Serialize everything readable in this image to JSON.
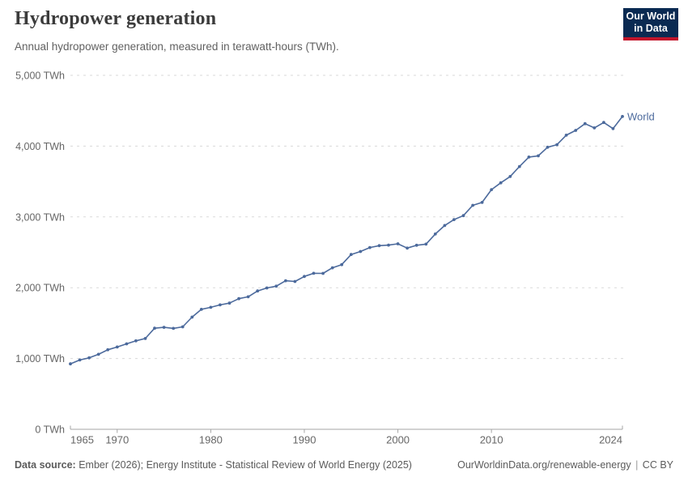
{
  "header": {
    "title": "Hydropower generation",
    "subtitle": "Annual hydropower generation, measured in terawatt-hours (TWh).",
    "logo": {
      "line1": "Our World",
      "line2": "in Data"
    }
  },
  "chart_data": {
    "type": "line",
    "title": "Hydropower generation",
    "xlabel": "",
    "ylabel": "TWh",
    "xlim": [
      1965,
      2024
    ],
    "ylim": [
      0,
      5000
    ],
    "grid": "horizontal-dashed",
    "legend_position": "end-of-line",
    "x_ticks": [
      {
        "value": 1965,
        "label": "1965"
      },
      {
        "value": 1970,
        "label": "1970"
      },
      {
        "value": 1980,
        "label": "1980"
      },
      {
        "value": 1990,
        "label": "1990"
      },
      {
        "value": 2000,
        "label": "2000"
      },
      {
        "value": 2010,
        "label": "2010"
      },
      {
        "value": 2024,
        "label": "2024"
      }
    ],
    "y_ticks": [
      {
        "value": 0,
        "label": "0 TWh"
      },
      {
        "value": 1000,
        "label": "1,000 TWh"
      },
      {
        "value": 2000,
        "label": "2,000 TWh"
      },
      {
        "value": 3000,
        "label": "3,000 TWh"
      },
      {
        "value": 4000,
        "label": "4,000 TWh"
      },
      {
        "value": 5000,
        "label": "5,000 TWh"
      }
    ],
    "series": [
      {
        "name": "World",
        "color": "#4C6A9C",
        "x": [
          1965,
          1966,
          1967,
          1968,
          1969,
          1970,
          1971,
          1972,
          1973,
          1974,
          1975,
          1976,
          1977,
          1978,
          1979,
          1980,
          1981,
          1982,
          1983,
          1984,
          1985,
          1986,
          1987,
          1988,
          1989,
          1990,
          1991,
          1992,
          1993,
          1994,
          1995,
          1996,
          1997,
          1998,
          1999,
          2000,
          2001,
          2002,
          2003,
          2004,
          2005,
          2006,
          2007,
          2008,
          2009,
          2010,
          2011,
          2012,
          2013,
          2014,
          2015,
          2016,
          2017,
          2018,
          2019,
          2020,
          2021,
          2022,
          2023,
          2024
        ],
        "values": [
          924,
          979,
          1009,
          1060,
          1124,
          1163,
          1207,
          1249,
          1283,
          1428,
          1441,
          1426,
          1447,
          1585,
          1695,
          1723,
          1758,
          1783,
          1845,
          1872,
          1954,
          1997,
          2022,
          2098,
          2088,
          2159,
          2204,
          2202,
          2281,
          2326,
          2469,
          2511,
          2568,
          2594,
          2602,
          2620,
          2560,
          2600,
          2616,
          2759,
          2879,
          2962,
          3018,
          3164,
          3205,
          3386,
          3482,
          3571,
          3712,
          3846,
          3863,
          3984,
          4021,
          4154,
          4222,
          4317,
          4257,
          4334,
          4247,
          4419
        ]
      }
    ]
  },
  "footer": {
    "source_label": "Data source:",
    "source_text": "Ember (2026); Energy Institute - Statistical Review of World Energy (2025)",
    "credit_text": "OurWorldinData.org/renewable-energy",
    "separator": "|",
    "license_text": "CC BY"
  },
  "colors": {
    "line": "#4C6A9C",
    "logo_bg": "#0A2A52",
    "logo_accent": "#C2152B",
    "grid": "#dadada",
    "axis": "#a5a5a5",
    "tick_label": "#666666",
    "title": "#3B3B3B",
    "subtitle": "#616161",
    "footer": "#5B5B5B"
  }
}
